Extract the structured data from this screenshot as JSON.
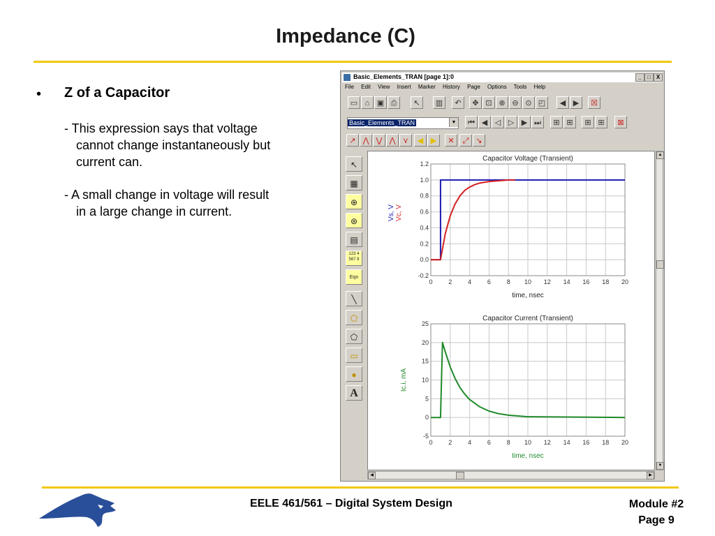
{
  "slide": {
    "title": "Impedance (C)",
    "bullet_symbol": "•",
    "bullet_heading": "Z of a Capacitor",
    "para1": [
      "- This expression says that voltage",
      "cannot change instantaneously but",
      "current can."
    ],
    "para2": [
      "- A small change in voltage will result",
      "in a large change in current."
    ],
    "footer_center": "EELE 461/561 – Digital System Design",
    "footer_right": [
      "Module #2",
      "Page 9"
    ]
  },
  "window": {
    "title": "Basic_Elements_TRAN [page 1]:0",
    "buttons": [
      "_",
      "□",
      "X"
    ],
    "menu": [
      "File",
      "Edit",
      "View",
      "Insert",
      "Marker",
      "History",
      "Page",
      "Options",
      "Tools",
      "Help"
    ],
    "dataset_selector": "Basic_Elements_TRAN"
  },
  "colors": {
    "accent_rule": "#f2c80f",
    "vs_trace": "#1a1ab0",
    "vc_trace": "#d42020",
    "ic_trace": "#1f8a2a",
    "logo_blue": "#2a4f9a"
  },
  "chart_data": [
    {
      "type": "line",
      "title": "Capacitor Voltage (Transient)",
      "xlabel": "time, nsec",
      "ylabel_series": [
        "Vs, V",
        "Vc, V"
      ],
      "xlim": [
        0,
        20
      ],
      "ylim": [
        -0.2,
        1.2
      ],
      "xticks": [
        0,
        2,
        4,
        6,
        8,
        10,
        12,
        14,
        16,
        18,
        20
      ],
      "yticks": [
        "1.2",
        "1.0",
        "0.8",
        "0.6",
        "0.4",
        "0.2",
        "0.0",
        "-0.2"
      ],
      "ytick_values": [
        1.2,
        1.0,
        0.8,
        0.6,
        0.4,
        0.2,
        0.0,
        -0.2
      ],
      "grid": true,
      "series": [
        {
          "name": "Vs, V",
          "x": [
            0,
            1,
            1,
            20
          ],
          "y": [
            0,
            0,
            1,
            1
          ]
        },
        {
          "name": "Vc, V",
          "x": [
            0,
            1,
            1.5,
            2,
            2.5,
            3,
            3.5,
            4,
            4.5,
            5,
            5.5,
            6,
            7,
            8,
            8.7
          ],
          "y": [
            0,
            0,
            0.33,
            0.55,
            0.7,
            0.8,
            0.87,
            0.91,
            0.94,
            0.96,
            0.97,
            0.98,
            0.99,
            1.0,
            1.0
          ]
        }
      ]
    },
    {
      "type": "line",
      "title": "Capacitor Current (Transient)",
      "xlabel": "time, nsec",
      "ylabel": "Ic.i, mA",
      "xlim": [
        0,
        20
      ],
      "ylim": [
        -5,
        25
      ],
      "xticks": [
        0,
        2,
        4,
        6,
        8,
        10,
        12,
        14,
        16,
        18,
        20
      ],
      "yticks": [
        "25",
        "20",
        "15",
        "10",
        "5",
        "0",
        "-5"
      ],
      "ytick_values": [
        25,
        20,
        15,
        10,
        5,
        0,
        -5
      ],
      "grid": true,
      "series": [
        {
          "name": "Ic.i, mA",
          "x": [
            0,
            1,
            1,
            1.2,
            1.5,
            2,
            2.5,
            3,
            3.5,
            4,
            5,
            6,
            7,
            8,
            10,
            20
          ],
          "y": [
            0,
            0,
            0,
            20,
            17.5,
            13.5,
            10.4,
            8.0,
            6.2,
            4.8,
            2.9,
            1.7,
            1.0,
            0.6,
            0.2,
            0
          ]
        }
      ]
    }
  ]
}
